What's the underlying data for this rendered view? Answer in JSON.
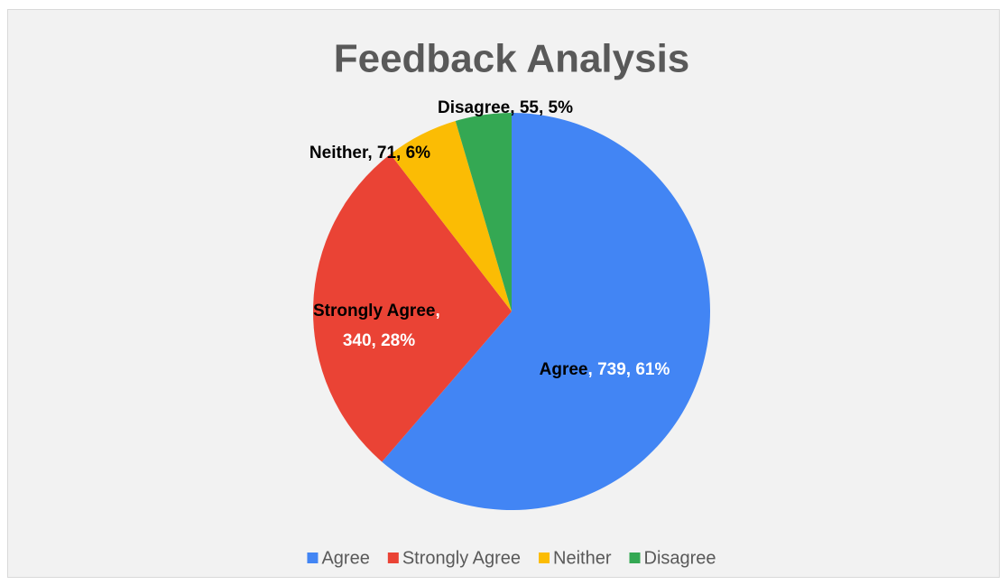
{
  "chart_data": {
    "type": "pie",
    "title": "Feedback Analysis",
    "categories": [
      "Agree",
      "Strongly Agree",
      "Neither",
      "Disagree"
    ],
    "values": [
      739,
      340,
      71,
      55
    ],
    "percents": [
      {
        "value": 61,
        "label": "61%"
      },
      {
        "value": 28,
        "label": "28%"
      },
      {
        "value": 6,
        "label": "6%"
      },
      {
        "value": 5,
        "label": "5%"
      }
    ],
    "separator": ", ",
    "colors": [
      "#4285f4",
      "#ea4335",
      "#fbbc04",
      "#34a853"
    ],
    "legend": "bottom"
  }
}
